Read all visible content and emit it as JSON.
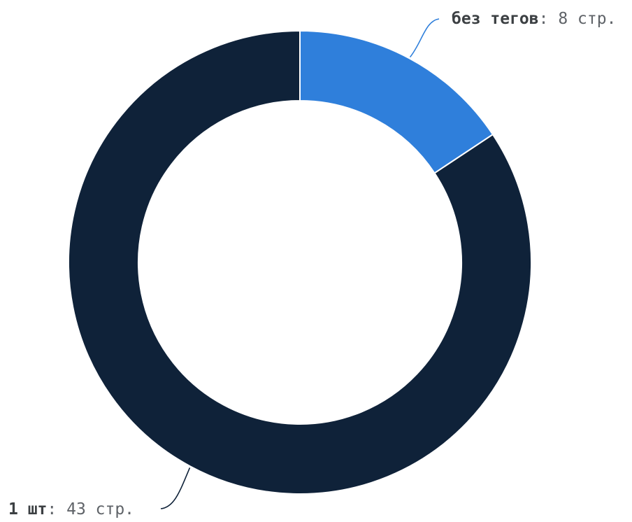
{
  "chart_data": {
    "type": "pie",
    "donut": true,
    "series": [
      {
        "name": "без тегов",
        "value": 8,
        "unit": "стр.",
        "color": "#2f7fdb",
        "label_name": "без тегов",
        "label_sep": ": ",
        "label_value": "8 стр."
      },
      {
        "name": "1 шт",
        "value": 43,
        "unit": "стр.",
        "color": "#0f2239",
        "label_name": "1 шт",
        "label_sep": ": ",
        "label_value": "43 стр."
      }
    ],
    "legend": "none",
    "labels_position": "outside-with-leader-lines"
  }
}
